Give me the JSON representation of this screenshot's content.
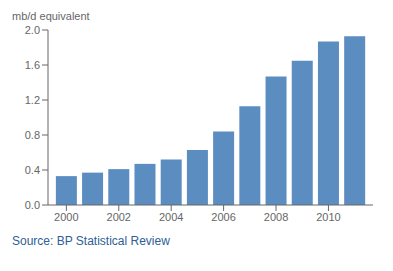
{
  "chart_data": {
    "type": "bar",
    "ylabel": "mb/d equivalent",
    "x": [
      2000,
      2001,
      2002,
      2003,
      2004,
      2005,
      2006,
      2007,
      2008,
      2009,
      2010,
      2011
    ],
    "values": [
      0.33,
      0.37,
      0.41,
      0.47,
      0.52,
      0.63,
      0.84,
      1.13,
      1.47,
      1.65,
      1.87,
      1.93
    ],
    "color": "#5b8dc0",
    "xlim": [
      1999.3,
      2011.7
    ],
    "xticks": [
      2000,
      2002,
      2004,
      2006,
      2008,
      2010
    ],
    "ylim": [
      0,
      2.0
    ],
    "yticks": [
      {
        "value": 0.0,
        "label": "0.0"
      },
      0.4,
      0.8,
      1.2,
      1.6,
      {
        "value": 2.0,
        "label": "2.0"
      }
    ],
    "grid": false,
    "annotations": [
      {
        "text": "Source: BP Statistical Review",
        "color": "#2e6096"
      }
    ]
  }
}
